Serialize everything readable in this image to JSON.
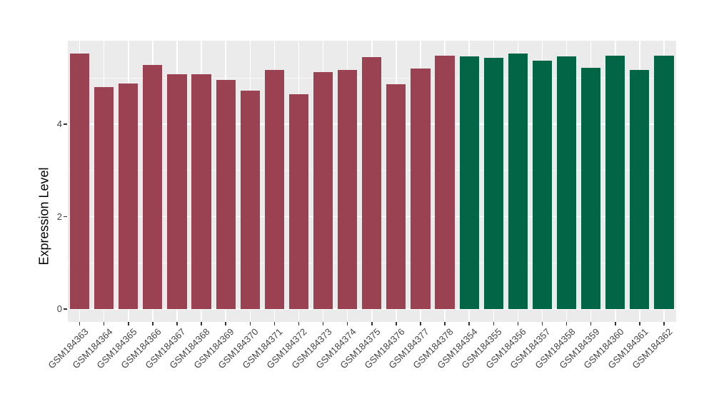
{
  "chart_data": {
    "type": "bar",
    "title": "",
    "xlabel": "",
    "ylabel": "Expression Level",
    "y_ticks": [
      0,
      2,
      4
    ],
    "y_minor_ticks": [
      1,
      3,
      5
    ],
    "ylim": [
      0,
      5.8
    ],
    "grid": "on",
    "legend": "none",
    "panel_bg": "#EBEBEB",
    "gridline_color": "#FFFFFF",
    "tick_color": "#333333",
    "tick_label_color": "#444444",
    "bar_colors": {
      "group1": "#9B4252",
      "group2": "#026646"
    },
    "bars": [
      {
        "label": "GSM184363",
        "value": 5.53,
        "group": "group1"
      },
      {
        "label": "GSM184364",
        "value": 4.81,
        "group": "group1"
      },
      {
        "label": "GSM184365",
        "value": 4.88,
        "group": "group1"
      },
      {
        "label": "GSM184366",
        "value": 5.28,
        "group": "group1"
      },
      {
        "label": "GSM184367",
        "value": 5.08,
        "group": "group1"
      },
      {
        "label": "GSM184368",
        "value": 5.08,
        "group": "group1"
      },
      {
        "label": "GSM184369",
        "value": 4.96,
        "group": "group1"
      },
      {
        "label": "GSM184370",
        "value": 4.73,
        "group": "group1"
      },
      {
        "label": "GSM184371",
        "value": 5.17,
        "group": "group1"
      },
      {
        "label": "GSM184372",
        "value": 4.65,
        "group": "group1"
      },
      {
        "label": "GSM184373",
        "value": 5.13,
        "group": "group1"
      },
      {
        "label": "GSM184374",
        "value": 5.17,
        "group": "group1"
      },
      {
        "label": "GSM184375",
        "value": 5.45,
        "group": "group1"
      },
      {
        "label": "GSM184376",
        "value": 4.86,
        "group": "group1"
      },
      {
        "label": "GSM184377",
        "value": 5.2,
        "group": "group1"
      },
      {
        "label": "GSM184378",
        "value": 5.49,
        "group": "group1"
      },
      {
        "label": "GSM184354",
        "value": 5.46,
        "group": "group2"
      },
      {
        "label": "GSM184355",
        "value": 5.43,
        "group": "group2"
      },
      {
        "label": "GSM184356",
        "value": 5.53,
        "group": "group2"
      },
      {
        "label": "GSM184357",
        "value": 5.38,
        "group": "group2"
      },
      {
        "label": "GSM184358",
        "value": 5.47,
        "group": "group2"
      },
      {
        "label": "GSM184359",
        "value": 5.22,
        "group": "group2"
      },
      {
        "label": "GSM184360",
        "value": 5.48,
        "group": "group2"
      },
      {
        "label": "GSM184361",
        "value": 5.18,
        "group": "group2"
      },
      {
        "label": "GSM184362",
        "value": 5.48,
        "group": "group2"
      }
    ]
  }
}
